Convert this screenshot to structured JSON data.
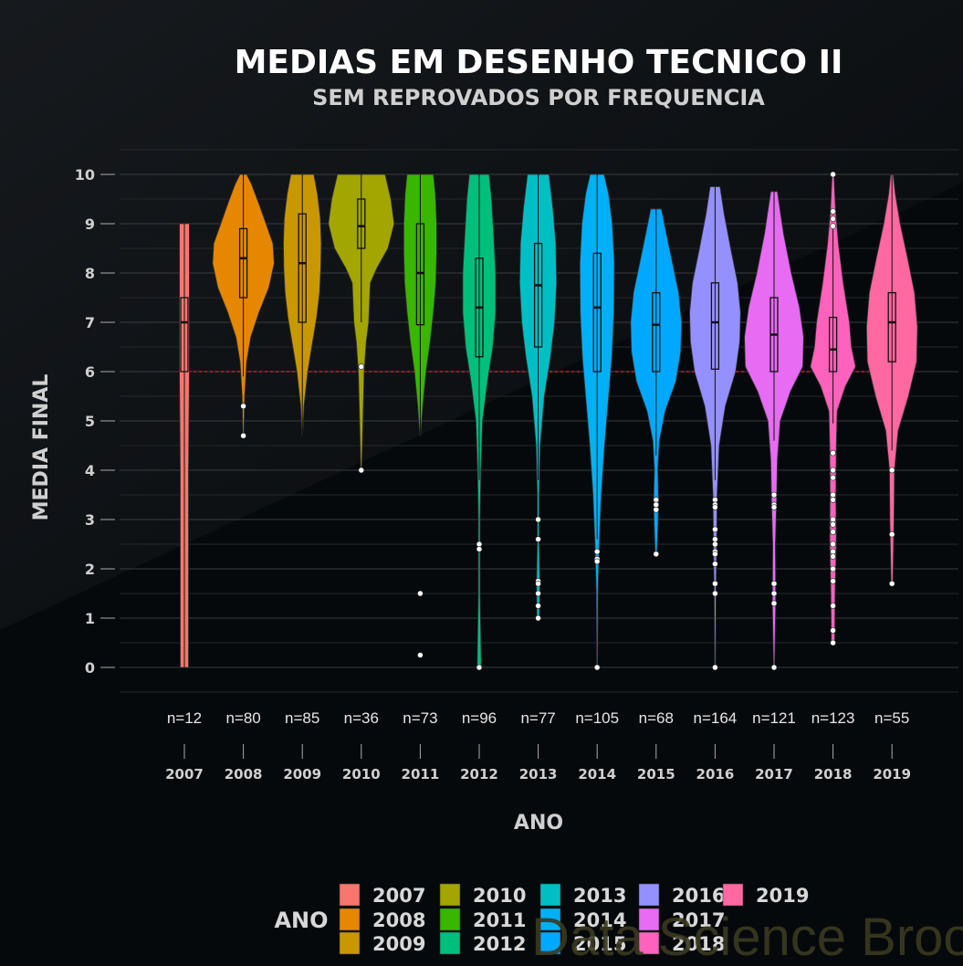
{
  "chart_data": {
    "type": "violin",
    "title": "MEDIAS EM DESENHO TECNICO II",
    "subtitle": "SEM REPROVADOS POR FREQUENCIA",
    "xlabel": "ANO",
    "ylabel": "MEDIA FINAL",
    "ylim": [
      0,
      10
    ],
    "yticks": [
      "0",
      "1",
      "2",
      "3",
      "4",
      "5",
      "6",
      "7",
      "8",
      "9",
      "10"
    ],
    "reference_line": 6,
    "grid": true,
    "legend_title": "ANO",
    "legend_position": "bottom",
    "watermark": "Data Science Broon",
    "series": [
      {
        "name": "2007",
        "color": "#F8766D",
        "n_label": "n=12",
        "min": 0,
        "max": 9,
        "q1": 6.0,
        "median": 7.0,
        "q3": 7.5,
        "wlo": 0,
        "whi": 9,
        "outliers": [],
        "density": [
          [
            0,
            0.1
          ],
          [
            2,
            0.1
          ],
          [
            4,
            0.1
          ],
          [
            6,
            0.12
          ],
          [
            7,
            0.12
          ],
          [
            8,
            0.12
          ],
          [
            9,
            0.12
          ]
        ]
      },
      {
        "name": "2008",
        "color": "#E58700",
        "n_label": "n=80",
        "min": 4.7,
        "max": 10,
        "q1": 7.5,
        "median": 8.3,
        "q3": 8.9,
        "wlo": 5.9,
        "whi": 10,
        "outliers": [
          5.3,
          4.7
        ],
        "density": [
          [
            4.7,
            0.01
          ],
          [
            5.5,
            0.03
          ],
          [
            6.2,
            0.08
          ],
          [
            6.7,
            0.18
          ],
          [
            7.2,
            0.38
          ],
          [
            7.7,
            0.62
          ],
          [
            8.2,
            0.75
          ],
          [
            8.6,
            0.72
          ],
          [
            9.0,
            0.55
          ],
          [
            9.4,
            0.38
          ],
          [
            9.8,
            0.2
          ],
          [
            10,
            0.08
          ]
        ]
      },
      {
        "name": "2009",
        "color": "#C99800",
        "n_label": "n=85",
        "min": 4.7,
        "max": 10,
        "q1": 7.0,
        "median": 8.2,
        "q3": 9.2,
        "wlo": 4.7,
        "whi": 10,
        "outliers": [],
        "density": [
          [
            4.7,
            0.01
          ],
          [
            5.3,
            0.04
          ],
          [
            6.0,
            0.13
          ],
          [
            6.6,
            0.25
          ],
          [
            7.1,
            0.35
          ],
          [
            7.6,
            0.42
          ],
          [
            8.1,
            0.45
          ],
          [
            8.6,
            0.46
          ],
          [
            9.1,
            0.44
          ],
          [
            9.6,
            0.37
          ],
          [
            10,
            0.28
          ]
        ]
      },
      {
        "name": "2010",
        "color": "#A3A500",
        "n_label": "n=36",
        "min": 4.0,
        "max": 10,
        "q1": 8.5,
        "median": 8.95,
        "q3": 9.5,
        "wlo": 7.0,
        "whi": 10,
        "outliers": [
          6.1,
          4.0
        ],
        "density": [
          [
            4.0,
            0.01
          ],
          [
            5.0,
            0.04
          ],
          [
            6.0,
            0.07
          ],
          [
            6.6,
            0.12
          ],
          [
            7.0,
            0.18
          ],
          [
            7.4,
            0.2
          ],
          [
            7.8,
            0.22
          ],
          [
            8.1,
            0.38
          ],
          [
            8.5,
            0.65
          ],
          [
            9.0,
            0.8
          ],
          [
            9.5,
            0.72
          ],
          [
            10,
            0.58
          ]
        ]
      },
      {
        "name": "2011",
        "color": "#39B600",
        "n_label": "n=73",
        "min": 0.25,
        "max": 10,
        "q1": 6.95,
        "median": 8.0,
        "q3": 9.0,
        "wlo": 4.7,
        "whi": 10,
        "outliers": [
          1.5,
          0.25
        ],
        "density": [
          [
            4.7,
            0.01
          ],
          [
            5.3,
            0.06
          ],
          [
            6.0,
            0.14
          ],
          [
            6.6,
            0.24
          ],
          [
            7.2,
            0.32
          ],
          [
            7.8,
            0.38
          ],
          [
            8.4,
            0.4
          ],
          [
            9.0,
            0.4
          ],
          [
            9.6,
            0.37
          ],
          [
            10,
            0.32
          ]
        ]
      },
      {
        "name": "2012",
        "color": "#00BF7D",
        "n_label": "n=96",
        "min": 0,
        "max": 10,
        "q1": 6.3,
        "median": 7.3,
        "q3": 8.3,
        "wlo": 3.8,
        "whi": 10,
        "outliers": [
          2.5,
          2.4,
          0
        ],
        "density": [
          [
            0,
            0.05
          ],
          [
            0.5,
            0.04
          ],
          [
            1.5,
            0.02
          ],
          [
            3.0,
            0.02
          ],
          [
            4.0,
            0.04
          ],
          [
            5.0,
            0.08
          ],
          [
            5.8,
            0.2
          ],
          [
            6.5,
            0.33
          ],
          [
            7.2,
            0.4
          ],
          [
            8.0,
            0.4
          ],
          [
            8.8,
            0.35
          ],
          [
            9.5,
            0.3
          ],
          [
            10,
            0.24
          ]
        ]
      },
      {
        "name": "2013",
        "color": "#00BFC4",
        "n_label": "n=77",
        "min": 1.0,
        "max": 10,
        "q1": 6.5,
        "median": 7.75,
        "q3": 8.6,
        "wlo": 3.8,
        "whi": 10,
        "outliers": [
          3.0,
          2.6,
          1.75,
          1.7,
          1.5,
          1.25,
          1.0
        ],
        "density": [
          [
            1.0,
            0.03
          ],
          [
            1.7,
            0.04
          ],
          [
            2.5,
            0.02
          ],
          [
            3.5,
            0.02
          ],
          [
            4.5,
            0.05
          ],
          [
            5.5,
            0.15
          ],
          [
            6.3,
            0.3
          ],
          [
            7.0,
            0.4
          ],
          [
            7.8,
            0.45
          ],
          [
            8.6,
            0.43
          ],
          [
            9.3,
            0.36
          ],
          [
            10,
            0.26
          ]
        ]
      },
      {
        "name": "2014",
        "color": "#00B0F6",
        "n_label": "n=105",
        "min": 0,
        "max": 10,
        "q1": 6.0,
        "median": 7.3,
        "q3": 8.4,
        "wlo": 2.6,
        "whi": 10,
        "outliers": [
          2.35,
          2.2,
          2.15,
          0
        ],
        "density": [
          [
            0,
            0.01
          ],
          [
            1.5,
            0.02
          ],
          [
            2.5,
            0.05
          ],
          [
            3.5,
            0.1
          ],
          [
            4.5,
            0.18
          ],
          [
            5.5,
            0.28
          ],
          [
            6.3,
            0.36
          ],
          [
            7.2,
            0.41
          ],
          [
            8.2,
            0.42
          ],
          [
            9.0,
            0.37
          ],
          [
            9.6,
            0.28
          ],
          [
            10,
            0.17
          ]
        ]
      },
      {
        "name": "2015",
        "color": "#00A9FF",
        "n_label": "n=68",
        "min": 2.3,
        "max": 9.3,
        "q1": 6.0,
        "median": 6.95,
        "q3": 7.6,
        "wlo": 4.3,
        "whi": 9.3,
        "outliers": [
          3.4,
          3.3,
          3.2,
          2.3
        ],
        "density": [
          [
            2.3,
            0.02
          ],
          [
            3.0,
            0.05
          ],
          [
            3.4,
            0.06
          ],
          [
            4.0,
            0.04
          ],
          [
            4.6,
            0.08
          ],
          [
            5.2,
            0.22
          ],
          [
            5.8,
            0.48
          ],
          [
            6.4,
            0.6
          ],
          [
            7.0,
            0.62
          ],
          [
            7.6,
            0.55
          ],
          [
            8.2,
            0.4
          ],
          [
            8.8,
            0.25
          ],
          [
            9.3,
            0.13
          ]
        ]
      },
      {
        "name": "2016",
        "color": "#9590FF",
        "n_label": "n=164",
        "min": 0,
        "max": 9.75,
        "q1": 6.05,
        "median": 7.0,
        "q3": 7.8,
        "wlo": 3.8,
        "whi": 9.75,
        "outliers": [
          3.4,
          3.3,
          3.25,
          2.8,
          2.6,
          2.5,
          2.35,
          2.3,
          2.1,
          1.7,
          1.5,
          0
        ],
        "density": [
          [
            0,
            0.01
          ],
          [
            1.5,
            0.02
          ],
          [
            2.5,
            0.04
          ],
          [
            3.5,
            0.05
          ],
          [
            4.5,
            0.1
          ],
          [
            5.3,
            0.25
          ],
          [
            6.0,
            0.5
          ],
          [
            6.6,
            0.6
          ],
          [
            7.2,
            0.62
          ],
          [
            7.8,
            0.55
          ],
          [
            8.5,
            0.38
          ],
          [
            9.2,
            0.22
          ],
          [
            9.75,
            0.12
          ]
        ]
      },
      {
        "name": "2017",
        "color": "#E76BF3",
        "n_label": "n=121",
        "min": 0,
        "max": 9.65,
        "q1": 6.0,
        "median": 6.75,
        "q3": 7.5,
        "wlo": 4.6,
        "whi": 9.65,
        "outliers": [
          3.5,
          3.3,
          3.25,
          1.7,
          1.5,
          1.3,
          0
        ],
        "density": [
          [
            0,
            0.01
          ],
          [
            1.3,
            0.04
          ],
          [
            2.5,
            0.03
          ],
          [
            3.3,
            0.06
          ],
          [
            4.2,
            0.08
          ],
          [
            5.0,
            0.15
          ],
          [
            5.6,
            0.4
          ],
          [
            6.1,
            0.7
          ],
          [
            6.7,
            0.72
          ],
          [
            7.3,
            0.62
          ],
          [
            8.0,
            0.42
          ],
          [
            8.8,
            0.23
          ],
          [
            9.65,
            0.08
          ]
        ]
      },
      {
        "name": "2018",
        "color": "#FF62BC",
        "n_label": "n=123",
        "min": 0.5,
        "max": 10,
        "q1": 6.0,
        "median": 6.45,
        "q3": 7.1,
        "wlo": 4.95,
        "whi": 8.9,
        "outliers": [
          10,
          9.25,
          9.1,
          8.95,
          4.35,
          4.0,
          3.85,
          3.5,
          3.4,
          3.0,
          2.9,
          2.75,
          2.5,
          2.35,
          2.25,
          2.0,
          1.75,
          1.25,
          0.75,
          0.5
        ],
        "density": [
          [
            0.5,
            0.04
          ],
          [
            1.5,
            0.05
          ],
          [
            2.5,
            0.08
          ],
          [
            3.5,
            0.07
          ],
          [
            4.5,
            0.08
          ],
          [
            5.2,
            0.1
          ],
          [
            5.7,
            0.3
          ],
          [
            6.1,
            0.55
          ],
          [
            6.5,
            0.45
          ],
          [
            7.0,
            0.4
          ],
          [
            7.8,
            0.25
          ],
          [
            8.6,
            0.13
          ],
          [
            9.3,
            0.06
          ],
          [
            10,
            0.02
          ]
        ]
      },
      {
        "name": "2019",
        "color": "#FF68A1",
        "n_label": "n=55",
        "min": 1.7,
        "max": 10,
        "q1": 6.2,
        "median": 7.0,
        "q3": 7.6,
        "wlo": 4.4,
        "whi": 10,
        "outliers": [
          4.0,
          2.7,
          1.7
        ],
        "density": [
          [
            1.7,
            0.02
          ],
          [
            3.0,
            0.05
          ],
          [
            4.0,
            0.06
          ],
          [
            4.8,
            0.15
          ],
          [
            5.5,
            0.4
          ],
          [
            6.2,
            0.6
          ],
          [
            6.9,
            0.62
          ],
          [
            7.6,
            0.55
          ],
          [
            8.3,
            0.38
          ],
          [
            9.0,
            0.2
          ],
          [
            9.6,
            0.08
          ],
          [
            10,
            0.03
          ]
        ]
      }
    ]
  }
}
